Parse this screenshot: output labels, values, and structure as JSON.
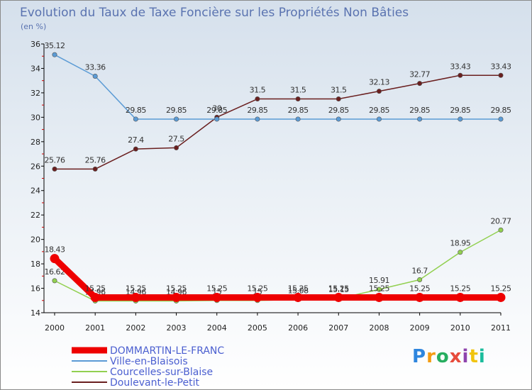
{
  "chart_data": {
    "type": "line",
    "title": "Evolution du Taux de Taxe Foncière sur les Propriétés Non Bâties",
    "subtitle": "(en %)",
    "categories": [
      "2000",
      "2001",
      "2002",
      "2003",
      "2004",
      "2005",
      "2006",
      "2007",
      "2008",
      "2009",
      "2010",
      "2011"
    ],
    "ylim": [
      14,
      36
    ],
    "yticks": [
      14,
      16,
      18,
      20,
      22,
      24,
      26,
      28,
      30,
      32,
      34,
      36
    ],
    "series": [
      {
        "name": "Doulevant-le-Petit",
        "color": "#6a1f1f",
        "values": [
          25.76,
          25.76,
          27.4,
          27.5,
          30,
          31.5,
          31.5,
          31.5,
          32.13,
          32.77,
          33.43,
          33.43
        ],
        "labels": [
          "25.76",
          "25.76",
          "27.4",
          "27.5",
          "30",
          "31.5",
          "31.5",
          "31.5",
          "32.13",
          "32.77",
          "33.43",
          "33.43"
        ]
      },
      {
        "name": "Ville-en-Blaisois",
        "color": "#5b9bd5",
        "values": [
          35.12,
          33.36,
          29.85,
          29.85,
          29.85,
          29.85,
          29.85,
          29.85,
          29.85,
          29.85,
          29.85,
          29.85
        ],
        "labels": [
          "35.12",
          "33.36",
          "29.85",
          "29.85",
          "29.85",
          "29.85",
          "29.85",
          "29.85",
          "29.85",
          "29.85",
          "29.85",
          "29.85"
        ]
      },
      {
        "name": "Courcelles-sur-Blaise",
        "color": "#92d050",
        "values": [
          16.62,
          14.96,
          14.96,
          14.96,
          15,
          15,
          15.08,
          15.15,
          15.91,
          16.7,
          18.95,
          20.77
        ],
        "labels": [
          "16.62",
          "14.96",
          "14.96",
          "14.96",
          "15",
          "15",
          "15.08",
          "15.15",
          "15.91",
          "16.7",
          "18.95",
          "20.77"
        ]
      },
      {
        "name": "DOMMARTIN-LE-FRANC",
        "color": "#ee0000",
        "values": [
          18.43,
          15.25,
          15.25,
          15.25,
          15.25,
          15.25,
          15.25,
          15.25,
          15.25,
          15.25,
          15.25,
          15.25
        ],
        "labels": [
          "18.43",
          "15.25",
          "15.25",
          "15.25",
          "15.25",
          "15.25",
          "15.25",
          "15.25",
          "15.25",
          "15.25",
          "15.25",
          "15.25"
        ]
      }
    ],
    "legend": {
      "placement": "bottom-left",
      "order": [
        "DOMMARTIN-LE-FRANC",
        "Ville-en-Blaisois",
        "Courcelles-sur-Blaise",
        "Doulevant-le-Petit"
      ]
    }
  },
  "logo": {
    "letters": [
      "P",
      "r",
      "o",
      "x",
      "i",
      "t",
      "i"
    ],
    "colors": [
      "#2e86de",
      "#f39c12",
      "#27ae60",
      "#e74c3c",
      "#8e44ad",
      "#f1c40f",
      "#1abc9c"
    ]
  }
}
